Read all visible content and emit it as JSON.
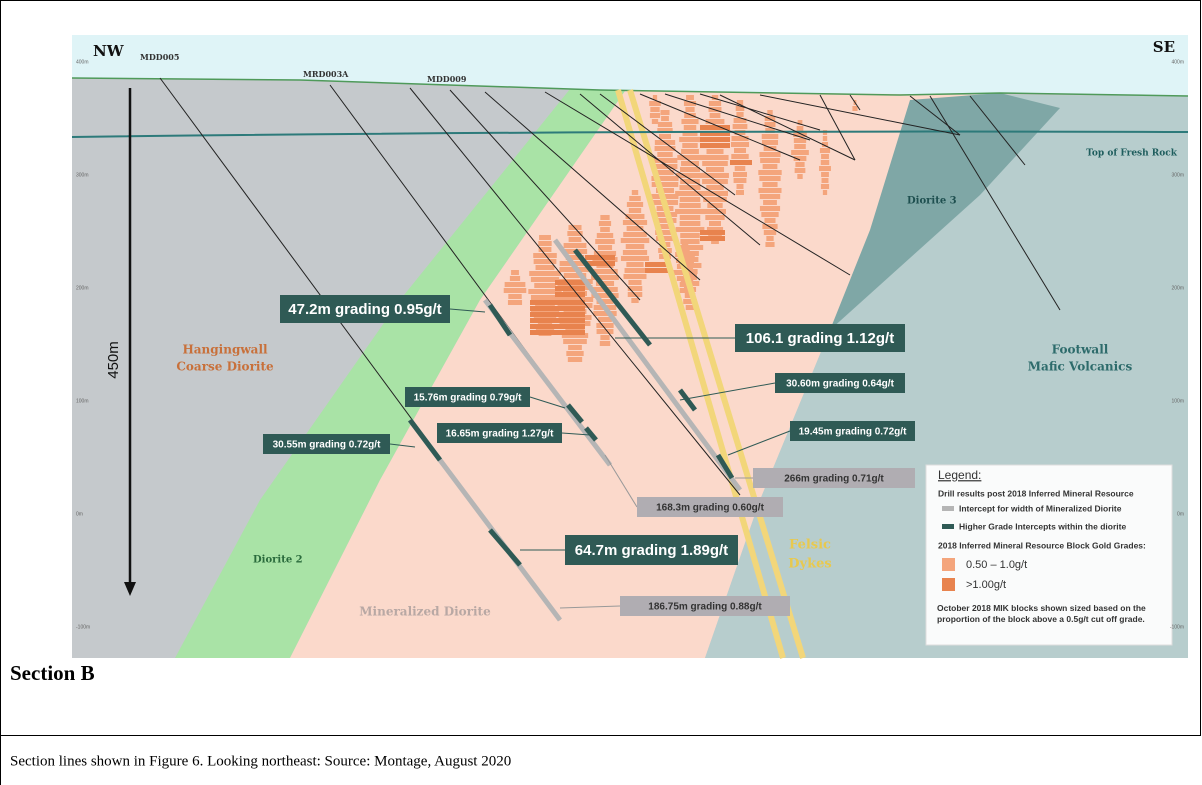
{
  "figure": {
    "corner_labels": {
      "left": "NW",
      "right": "SE"
    },
    "depth_labels": [
      "400m",
      "300m",
      "200m",
      "100m",
      "0m",
      "-100m"
    ],
    "drill_holes": [
      "MDD005",
      "MRD003A",
      "MDD009"
    ],
    "scale_label": "450m",
    "annotations": {
      "top_of_fresh_rock": "Top of Fresh Rock",
      "diorite_3": "Diorite 3",
      "hangingwall": [
        "Hangingwall",
        "Coarse Diorite"
      ],
      "footwall": [
        "Footwall",
        "Mafic Volcanics"
      ],
      "diorite_2": "Diorite 2",
      "mineralized_diorite": "Mineralized Diorite",
      "felsic_dykes": [
        "Felsic",
        "Dykes"
      ]
    },
    "intercepts": [
      "47.2m grading 0.95g/t",
      "106.1 grading 1.12g/t",
      "30.60m grading 0.64g/t",
      "15.76m grading 0.79g/t",
      "19.45m grading 0.72g/t",
      "16.65m grading 1.27g/t",
      "30.55m grading 0.72g/t",
      "266m grading 0.71g/t",
      "168.3m grading 0.60g/t",
      "64.7m grading 1.89g/t",
      "186.75m grading 0.88g/t"
    ],
    "legend": {
      "title": "Legend:",
      "heading": "Drill results post 2018 Inferred Mineral Resource",
      "items": [
        "Intercept for width of Mineralized Diorite",
        "Higher Grade Intercepts within the diorite"
      ],
      "grade_heading": "2018 Inferred Mineral Resource Block Gold Grades:",
      "grades": [
        "0.50 – 1.0g/t",
        ">1.00g/t"
      ],
      "note": "October 2018 MIK blocks shown sized based on the proportion of the block above a 0.5g/t cut off grade."
    }
  },
  "section_title": "Section B",
  "caption": "Section lines shown in Figure 6. Looking northeast: Source: Montage, August 2020"
}
